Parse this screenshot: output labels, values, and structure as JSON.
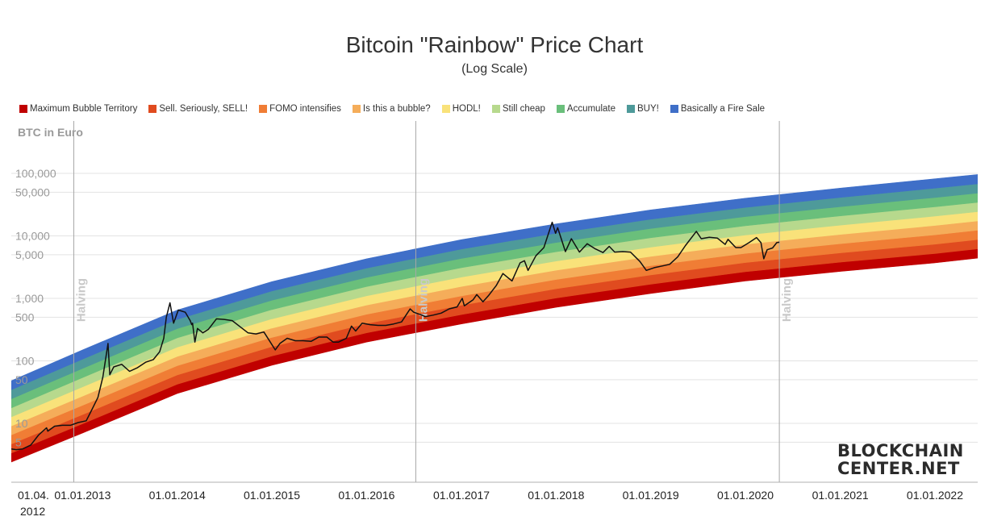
{
  "chart_data": {
    "type": "line",
    "title": "Bitcoin \"Rainbow\" Price Chart",
    "subtitle": "(Log Scale)",
    "ylabel": "BTC in Euro",
    "y_scale": "log",
    "ylim": [
      1,
      330000
    ],
    "xlim": [
      "2012-04-01",
      "2022-06-15"
    ],
    "grid": true,
    "legend_position": "top-left",
    "y_tick_labels": [
      {
        "value": 100000,
        "label": "100,000"
      },
      {
        "value": 50000,
        "label": "50,000"
      },
      {
        "value": 10000,
        "label": "10,000"
      },
      {
        "value": 5000,
        "label": "5,000"
      },
      {
        "value": 1000,
        "label": "1,000"
      },
      {
        "value": 500,
        "label": "500"
      },
      {
        "value": 100,
        "label": "100"
      },
      {
        "value": 50,
        "label": "50"
      },
      {
        "value": 10,
        "label": "10"
      },
      {
        "value": 5,
        "label": "5"
      }
    ],
    "x_tick_labels": [
      {
        "date": "2012-04-01",
        "label": "01.04. 2012"
      },
      {
        "date": "2013-01-01",
        "label": "01.01.2013"
      },
      {
        "date": "2014-01-01",
        "label": "01.01.2014"
      },
      {
        "date": "2015-01-01",
        "label": "01.01.2015"
      },
      {
        "date": "2016-01-01",
        "label": "01.01.2016"
      },
      {
        "date": "2017-01-01",
        "label": "01.01.2017"
      },
      {
        "date": "2018-01-01",
        "label": "01.01.2018"
      },
      {
        "date": "2019-01-01",
        "label": "01.01.2019"
      },
      {
        "date": "2020-01-01",
        "label": "01.01.2020"
      },
      {
        "date": "2021-01-01",
        "label": "01.01.2021"
      },
      {
        "date": "2022-01-01",
        "label": "01.01.2022"
      }
    ],
    "annotations": [
      {
        "date": "2012-11-28",
        "text": "Halving"
      },
      {
        "date": "2016-07-09",
        "text": "Halving"
      },
      {
        "date": "2020-05-11",
        "text": "Halving"
      }
    ],
    "bands": [
      {
        "name": "Maximum Bubble Territory",
        "color": "#c00000"
      },
      {
        "name": "Sell. Seriously, SELL!",
        "color": "#e04b1f"
      },
      {
        "name": "FOMO intensifies",
        "color": "#f07d35"
      },
      {
        "name": "Is this a bubble?",
        "color": "#f5ad5a"
      },
      {
        "name": "HODL!",
        "color": "#f9e27a"
      },
      {
        "name": "Still cheap",
        "color": "#b7d98d"
      },
      {
        "name": "Accumulate",
        "color": "#6abf7b"
      },
      {
        "name": "BUY!",
        "color": "#4e9a9a"
      },
      {
        "name": "Basically a Fire Sale",
        "color": "#3f6fc8"
      }
    ],
    "band_edges": [
      {
        "date": "2012-04-01",
        "bottom": 2.4,
        "top": 48
      },
      {
        "date": "2013-01-01",
        "bottom": 7,
        "top": 150
      },
      {
        "date": "2014-01-01",
        "bottom": 30,
        "top": 650
      },
      {
        "date": "2015-01-01",
        "bottom": 85,
        "top": 1850
      },
      {
        "date": "2016-01-01",
        "bottom": 200,
        "top": 4300
      },
      {
        "date": "2017-01-01",
        "bottom": 390,
        "top": 8700
      },
      {
        "date": "2018-01-01",
        "bottom": 720,
        "top": 15500
      },
      {
        "date": "2019-01-01",
        "bottom": 1200,
        "top": 26000
      },
      {
        "date": "2020-01-01",
        "bottom": 1900,
        "top": 40000
      },
      {
        "date": "2021-01-01",
        "bottom": 2700,
        "top": 58000
      },
      {
        "date": "2022-01-01",
        "bottom": 3700,
        "top": 82000
      },
      {
        "date": "2022-06-15",
        "bottom": 4400,
        "top": 96000
      }
    ],
    "series": [
      {
        "color": "#111111",
        "points": [
          [
            "2012-04-01",
            3.9
          ],
          [
            "2012-04-20",
            3.8
          ],
          [
            "2012-05-15",
            3.9
          ],
          [
            "2012-06-15",
            4.5
          ],
          [
            "2012-07-15",
            6.5
          ],
          [
            "2012-08-15",
            8.5
          ],
          [
            "2012-08-20",
            7.5
          ],
          [
            "2012-09-15",
            9.0
          ],
          [
            "2012-10-15",
            9.3
          ],
          [
            "2012-11-15",
            9.3
          ],
          [
            "2012-12-15",
            10.3
          ],
          [
            "2013-01-15",
            11
          ],
          [
            "2013-02-10",
            18
          ],
          [
            "2013-03-01",
            26
          ],
          [
            "2013-03-20",
            55
          ],
          [
            "2013-04-09",
            190
          ],
          [
            "2013-04-16",
            60
          ],
          [
            "2013-05-01",
            80
          ],
          [
            "2013-06-01",
            88
          ],
          [
            "2013-07-01",
            68
          ],
          [
            "2013-08-01",
            78
          ],
          [
            "2013-09-01",
            95
          ],
          [
            "2013-10-01",
            105
          ],
          [
            "2013-10-25",
            140
          ],
          [
            "2013-11-10",
            230
          ],
          [
            "2013-11-20",
            500
          ],
          [
            "2013-12-04",
            850
          ],
          [
            "2013-12-18",
            400
          ],
          [
            "2014-01-05",
            650
          ],
          [
            "2014-02-01",
            600
          ],
          [
            "2014-02-20",
            440
          ],
          [
            "2014-02-26",
            380
          ],
          [
            "2014-03-01",
            400
          ],
          [
            "2014-03-10",
            200
          ],
          [
            "2014-03-20",
            330
          ],
          [
            "2014-04-10",
            280
          ],
          [
            "2014-05-01",
            320
          ],
          [
            "2014-06-01",
            470
          ],
          [
            "2014-07-01",
            460
          ],
          [
            "2014-08-01",
            440
          ],
          [
            "2014-09-01",
            350
          ],
          [
            "2014-10-01",
            280
          ],
          [
            "2014-11-01",
            270
          ],
          [
            "2014-12-01",
            290
          ],
          [
            "2015-01-14",
            150
          ],
          [
            "2015-02-01",
            190
          ],
          [
            "2015-03-01",
            230
          ],
          [
            "2015-04-01",
            210
          ],
          [
            "2015-05-01",
            210
          ],
          [
            "2015-06-01",
            205
          ],
          [
            "2015-07-01",
            240
          ],
          [
            "2015-08-01",
            240
          ],
          [
            "2015-08-25",
            200
          ],
          [
            "2015-09-15",
            200
          ],
          [
            "2015-10-15",
            230
          ],
          [
            "2015-11-04",
            360
          ],
          [
            "2015-11-20",
            300
          ],
          [
            "2015-12-15",
            400
          ],
          [
            "2016-01-15",
            380
          ],
          [
            "2016-02-15",
            370
          ],
          [
            "2016-03-15",
            370
          ],
          [
            "2016-04-15",
            390
          ],
          [
            "2016-05-15",
            420
          ],
          [
            "2016-06-17",
            680
          ],
          [
            "2016-07-01",
            600
          ],
          [
            "2016-08-01",
            540
          ],
          [
            "2016-08-15",
            510
          ],
          [
            "2016-09-15",
            540
          ],
          [
            "2016-10-15",
            580
          ],
          [
            "2016-11-15",
            680
          ],
          [
            "2016-12-15",
            730
          ],
          [
            "2017-01-04",
            1000
          ],
          [
            "2017-01-12",
            760
          ],
          [
            "2017-02-15",
            950
          ],
          [
            "2017-03-01",
            1150
          ],
          [
            "2017-03-25",
            880
          ],
          [
            "2017-04-15",
            1100
          ],
          [
            "2017-05-15",
            1600
          ],
          [
            "2017-06-10",
            2500
          ],
          [
            "2017-07-15",
            1900
          ],
          [
            "2017-08-15",
            3700
          ],
          [
            "2017-09-01",
            4000
          ],
          [
            "2017-09-15",
            2800
          ],
          [
            "2017-10-15",
            4800
          ],
          [
            "2017-11-15",
            6500
          ],
          [
            "2017-12-17",
            16500
          ],
          [
            "2017-12-30",
            11000
          ],
          [
            "2018-01-07",
            13500
          ],
          [
            "2018-02-06",
            5600
          ],
          [
            "2018-03-01",
            9000
          ],
          [
            "2018-04-01",
            5500
          ],
          [
            "2018-05-01",
            7500
          ],
          [
            "2018-06-01",
            6200
          ],
          [
            "2018-07-01",
            5400
          ],
          [
            "2018-07-25",
            6800
          ],
          [
            "2018-08-15",
            5500
          ],
          [
            "2018-09-15",
            5600
          ],
          [
            "2018-10-15",
            5500
          ],
          [
            "2018-11-20",
            3900
          ],
          [
            "2018-12-15",
            2800
          ],
          [
            "2019-01-15",
            3100
          ],
          [
            "2019-02-15",
            3300
          ],
          [
            "2019-03-15",
            3500
          ],
          [
            "2019-04-15",
            4600
          ],
          [
            "2019-05-15",
            7000
          ],
          [
            "2019-06-26",
            11800
          ],
          [
            "2019-07-15",
            9000
          ],
          [
            "2019-08-15",
            9500
          ],
          [
            "2019-09-15",
            9200
          ],
          [
            "2019-10-15",
            7300
          ],
          [
            "2019-10-26",
            8800
          ],
          [
            "2019-11-25",
            6500
          ],
          [
            "2019-12-15",
            6500
          ],
          [
            "2020-01-15",
            7800
          ],
          [
            "2020-02-13",
            9400
          ],
          [
            "2020-03-01",
            7800
          ],
          [
            "2020-03-12",
            4300
          ],
          [
            "2020-03-25",
            6000
          ],
          [
            "2020-04-15",
            6400
          ],
          [
            "2020-05-01",
            7800
          ],
          [
            "2020-05-11",
            7900
          ]
        ]
      }
    ]
  }
}
